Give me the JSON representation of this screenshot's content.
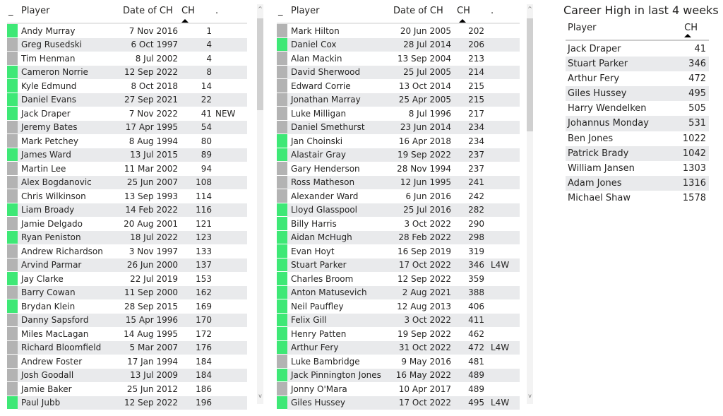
{
  "colors": {
    "green": "#3ee876",
    "gray": "#b3b3b3",
    "row_alt": "#e9eaec"
  },
  "left_table": {
    "headers": {
      "indicator": "_",
      "player": "Player",
      "date": "Date of CH",
      "ch": "CH",
      "flag": "."
    },
    "rows": [
      [
        "Andy Murray",
        "7 Nov 2016",
        "1",
        "",
        "green"
      ],
      [
        "Greg Rusedski",
        "6 Oct 1997",
        "4",
        "",
        "gray"
      ],
      [
        "Tim Henman",
        "8 Jul 2002",
        "4",
        "",
        "gray"
      ],
      [
        "Cameron Norrie",
        "12 Sep 2022",
        "8",
        "",
        "green"
      ],
      [
        "Kyle Edmund",
        "8 Oct 2018",
        "14",
        "",
        "green"
      ],
      [
        "Daniel Evans",
        "27 Sep 2021",
        "22",
        "",
        "green"
      ],
      [
        "Jack Draper",
        "7 Nov 2022",
        "41",
        "NEW",
        "green"
      ],
      [
        "Jeremy Bates",
        "17 Apr 1995",
        "54",
        "",
        "gray"
      ],
      [
        "Mark Petchey",
        "8 Aug 1994",
        "80",
        "",
        "gray"
      ],
      [
        "James Ward",
        "13 Jul 2015",
        "89",
        "",
        "green"
      ],
      [
        "Martin Lee",
        "11 Mar 2002",
        "94",
        "",
        "gray"
      ],
      [
        "Alex Bogdanovic",
        "25 Jun 2007",
        "108",
        "",
        "gray"
      ],
      [
        "Chris Wilkinson",
        "13 Sep 1993",
        "114",
        "",
        "gray"
      ],
      [
        "Liam Broady",
        "14 Feb 2022",
        "116",
        "",
        "green"
      ],
      [
        "Jamie Delgado",
        "20 Aug 2001",
        "121",
        "",
        "gray"
      ],
      [
        "Ryan Peniston",
        "18 Jul 2022",
        "123",
        "",
        "green"
      ],
      [
        "Andrew Richardson",
        "3 Nov 1997",
        "133",
        "",
        "gray"
      ],
      [
        "Arvind Parmar",
        "26 Jun 2000",
        "137",
        "",
        "gray"
      ],
      [
        "Jay Clarke",
        "22 Jul 2019",
        "153",
        "",
        "green"
      ],
      [
        "Barry Cowan",
        "11 Sep 2000",
        "162",
        "",
        "gray"
      ],
      [
        "Brydan Klein",
        "28 Sep 2015",
        "169",
        "",
        "green"
      ],
      [
        "Danny Sapsford",
        "15 Apr 1996",
        "170",
        "",
        "gray"
      ],
      [
        "Miles MacLagan",
        "14 Aug 1995",
        "172",
        "",
        "gray"
      ],
      [
        "Richard Bloomfield",
        "5 Mar 2007",
        "176",
        "",
        "gray"
      ],
      [
        "Andrew Foster",
        "17 Jan 1994",
        "184",
        "",
        "gray"
      ],
      [
        "Josh Goodall",
        "13 Jul 2009",
        "184",
        "",
        "gray"
      ],
      [
        "Jamie Baker",
        "25 Jun 2012",
        "186",
        "",
        "gray"
      ],
      [
        "Paul Jubb",
        "12 Sep 2022",
        "196",
        "",
        "green"
      ]
    ]
  },
  "middle_table": {
    "headers": {
      "indicator": "_",
      "player": "Player",
      "date": "Date of CH",
      "ch": "CH",
      "flag": "."
    },
    "rows": [
      [
        "Mark Hilton",
        "20 Jun 2005",
        "202",
        "",
        "gray"
      ],
      [
        "Daniel Cox",
        "28 Jul 2014",
        "206",
        "",
        "green"
      ],
      [
        "Alan Mackin",
        "13 Sep 2004",
        "213",
        "",
        "gray"
      ],
      [
        "David Sherwood",
        "25 Jul 2005",
        "214",
        "",
        "gray"
      ],
      [
        "Edward Corrie",
        "13 Oct 2014",
        "215",
        "",
        "gray"
      ],
      [
        "Jonathan Marray",
        "25 Apr 2005",
        "215",
        "",
        "gray"
      ],
      [
        "Luke Milligan",
        "8 Jul 1996",
        "217",
        "",
        "gray"
      ],
      [
        "Daniel Smethurst",
        "23 Jun 2014",
        "234",
        "",
        "gray"
      ],
      [
        "Jan Choinski",
        "16 Apr 2018",
        "234",
        "",
        "green"
      ],
      [
        "Alastair Gray",
        "19 Sep 2022",
        "237",
        "",
        "green"
      ],
      [
        "Gary Henderson",
        "28 Nov 1994",
        "237",
        "",
        "gray"
      ],
      [
        "Ross Matheson",
        "12 Jun 1995",
        "241",
        "",
        "gray"
      ],
      [
        "Alexander Ward",
        "6 Jun 2016",
        "242",
        "",
        "gray"
      ],
      [
        "Lloyd Glasspool",
        "25 Jul 2016",
        "282",
        "",
        "green"
      ],
      [
        "Billy Harris",
        "3 Oct 2022",
        "290",
        "",
        "green"
      ],
      [
        "Aidan McHugh",
        "28 Feb 2022",
        "298",
        "",
        "green"
      ],
      [
        "Evan Hoyt",
        "16 Sep 2019",
        "319",
        "",
        "green"
      ],
      [
        "Stuart Parker",
        "17 Oct 2022",
        "346",
        "L4W",
        "green"
      ],
      [
        "Charles Broom",
        "12 Sep 2022",
        "359",
        "",
        "green"
      ],
      [
        "Anton Matusevich",
        "2 Aug 2021",
        "388",
        "",
        "green"
      ],
      [
        "Neil Pauffley",
        "12 Aug 2013",
        "406",
        "",
        "green"
      ],
      [
        "Felix Gill",
        "3 Oct 2022",
        "411",
        "",
        "green"
      ],
      [
        "Henry Patten",
        "19 Sep 2022",
        "462",
        "",
        "green"
      ],
      [
        "Arthur Fery",
        "31 Oct 2022",
        "472",
        "L4W",
        "green"
      ],
      [
        "Luke Bambridge",
        "9 May 2016",
        "481",
        "",
        "gray"
      ],
      [
        "Jack Pinnington Jones",
        "16 May 2022",
        "489",
        "",
        "green"
      ],
      [
        "Jonny O'Mara",
        "10 Apr 2017",
        "489",
        "",
        "gray"
      ],
      [
        "Giles Hussey",
        "17 Oct 2022",
        "495",
        "L4W",
        "green"
      ]
    ]
  },
  "right_panel": {
    "title": "Career High in last 4 weeks",
    "headers": {
      "player": "Player",
      "ch": "CH"
    },
    "rows": [
      [
        "Jack Draper",
        "41"
      ],
      [
        "Stuart Parker",
        "346"
      ],
      [
        "Arthur Fery",
        "472"
      ],
      [
        "Giles Hussey",
        "495"
      ],
      [
        "Harry Wendelken",
        "505"
      ],
      [
        "Johannus Monday",
        "531"
      ],
      [
        "Ben Jones",
        "1022"
      ],
      [
        "Patrick Brady",
        "1042"
      ],
      [
        "William Jansen",
        "1303"
      ],
      [
        "Adam Jones",
        "1316"
      ],
      [
        "Michael Shaw",
        "1578"
      ]
    ]
  },
  "scrollbar": {
    "up_icon": "^",
    "down_icon": "v"
  }
}
